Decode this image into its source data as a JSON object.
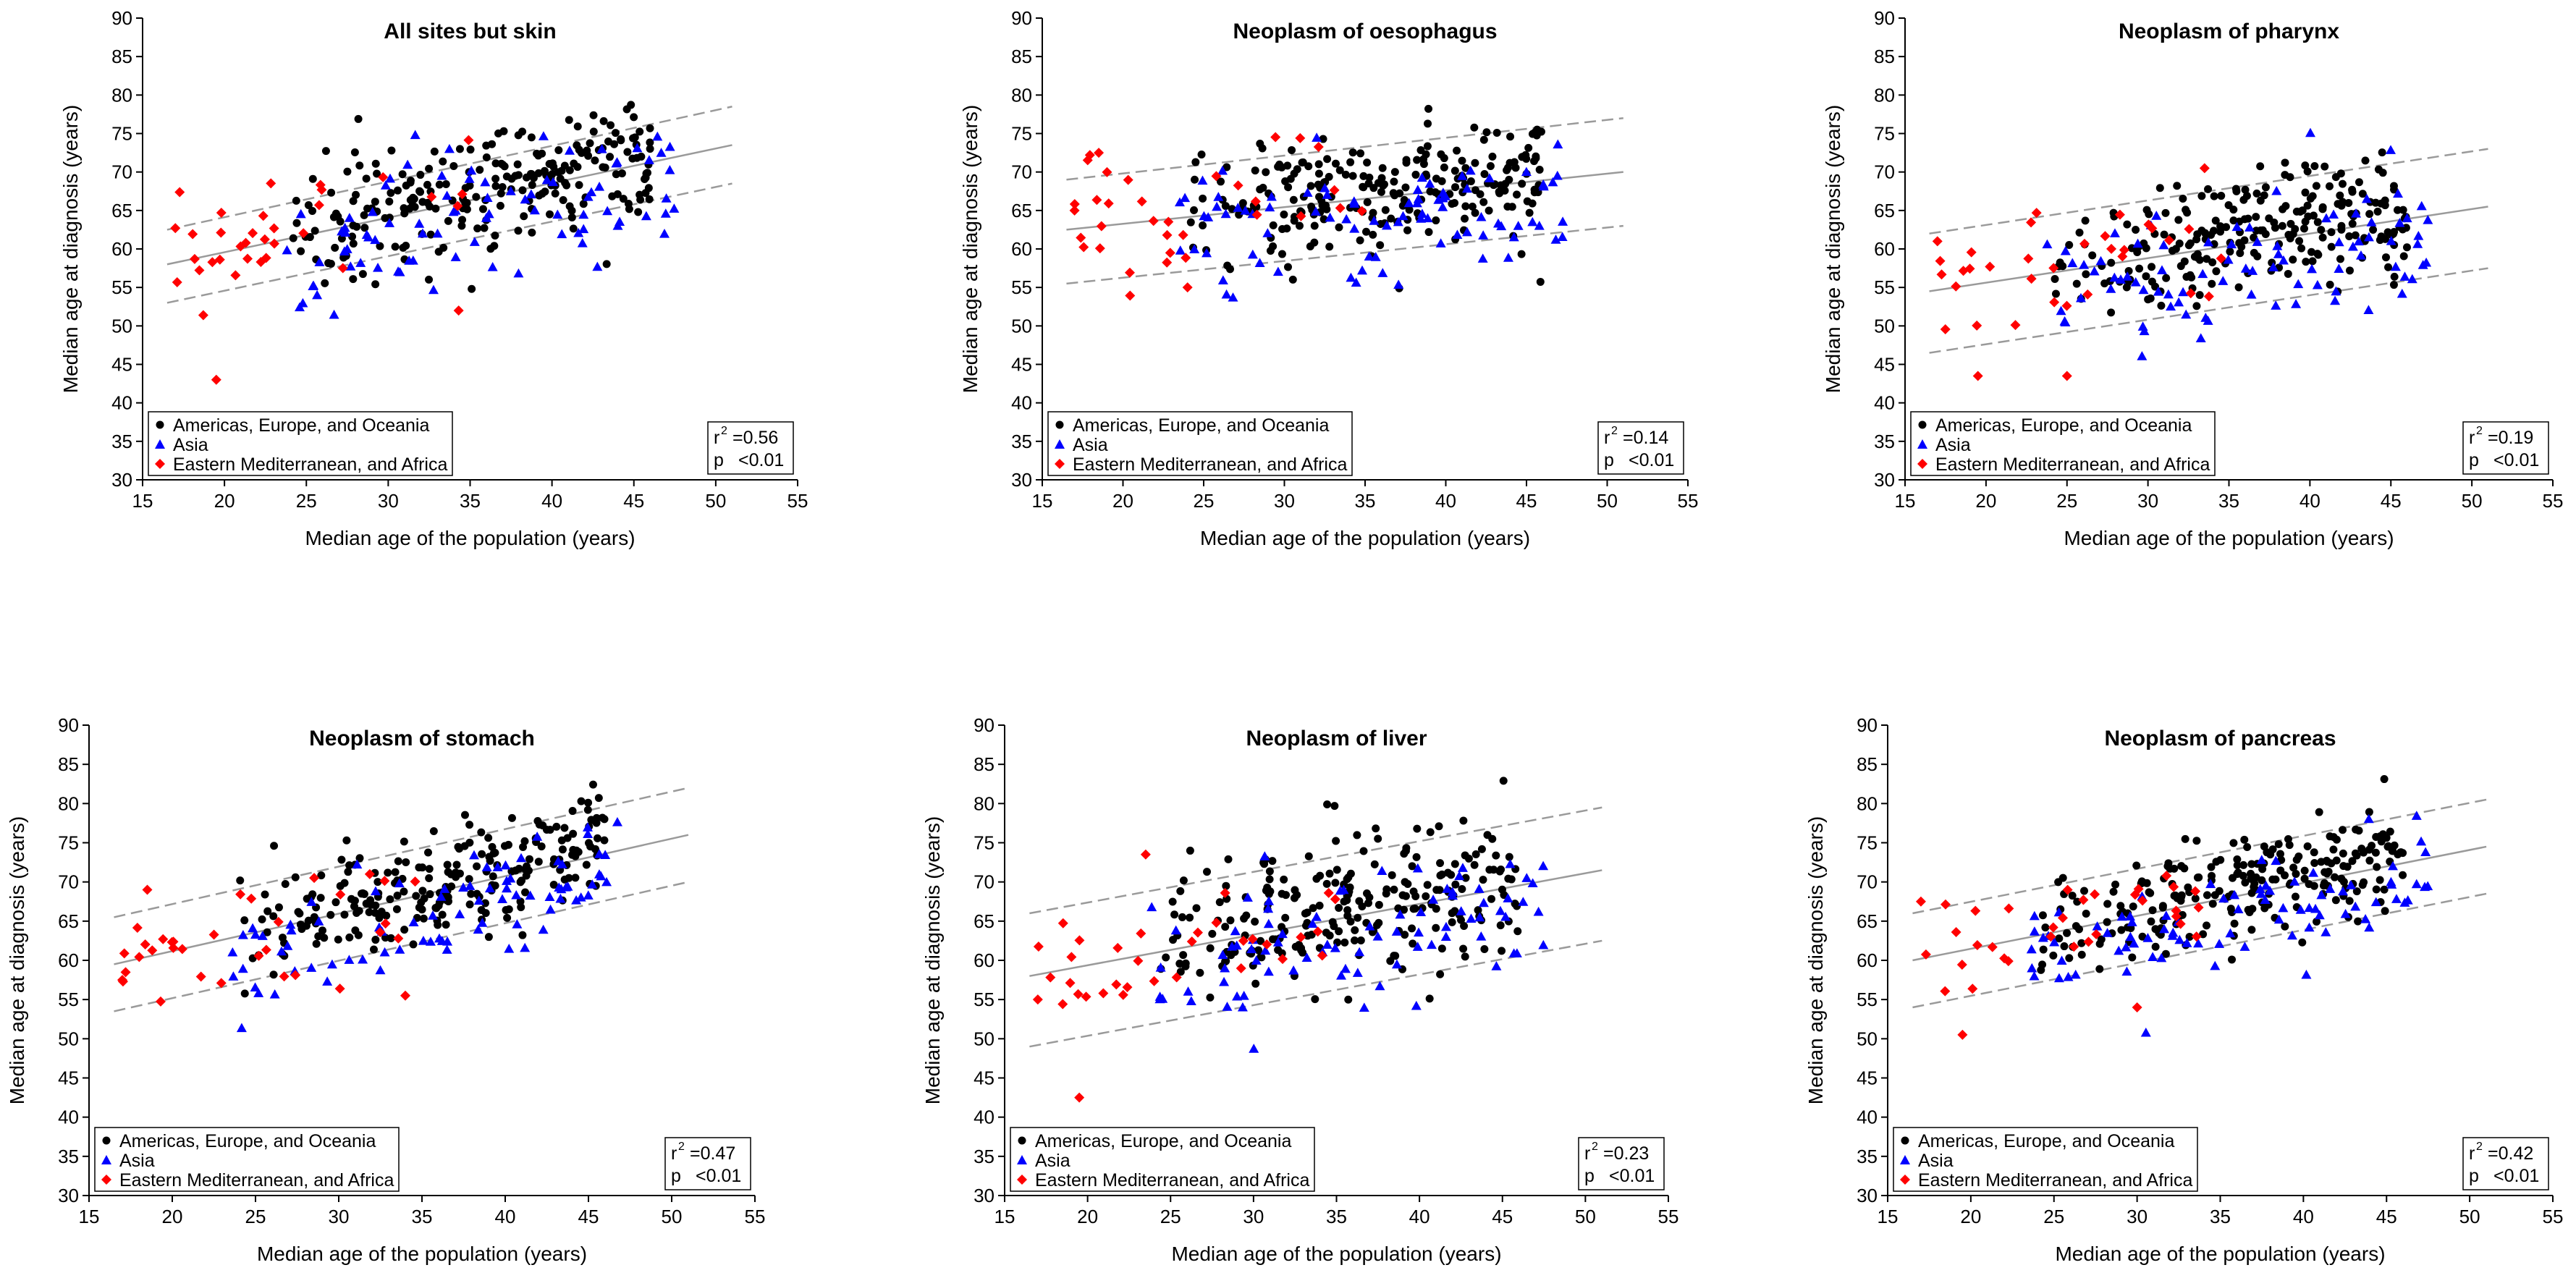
{
  "colors": {
    "americas": "#000000",
    "asia": "#0000ff",
    "emafrica": "#ff0000",
    "fit": "#9a9a9a",
    "ci": "#9a9a9a",
    "axis": "#000000"
  },
  "shared": {
    "xlabel": "Median age of the population (years)",
    "ylabel": "Median age at diagnosis (years)",
    "xticks": [
      "15",
      "20",
      "25",
      "30",
      "35",
      "40",
      "45",
      "50",
      "55"
    ],
    "yticks": [
      "30",
      "35",
      "40",
      "45",
      "50",
      "55",
      "60",
      "65",
      "70",
      "75",
      "80",
      "85",
      "90"
    ],
    "legend": [
      {
        "key": "americas",
        "label": "Americas, Europe, and Oceania",
        "marker": "circle"
      },
      {
        "key": "asia",
        "label": "Asia",
        "marker": "triangle"
      },
      {
        "key": "emafrica",
        "label": "Eastern Mediterranean, and Africa",
        "marker": "diamond"
      }
    ],
    "r2_label": "r",
    "r2_sup": "2",
    "p_label": "p",
    "p_value": "<0.01"
  },
  "chart_data": [
    {
      "type": "scatter",
      "title": "All sites but skin",
      "xlim": [
        15,
        55
      ],
      "ylim": [
        30,
        90
      ],
      "r2": "=0.56",
      "fit": {
        "x": [
          16.5,
          51
        ],
        "y": [
          58,
          73.5
        ]
      },
      "band": {
        "upper": [
          62.5,
          78.5
        ],
        "lower": [
          53,
          68.5
        ]
      },
      "outliers_emafrica": [
        [
          17,
          62.7
        ],
        [
          19.5,
          43
        ],
        [
          34.3,
          52
        ]
      ],
      "x_range": [
        16.5,
        51
      ],
      "y_spread": 4.2
    },
    {
      "type": "scatter",
      "title": "Neoplasm of oesophagus",
      "xlim": [
        15,
        55
      ],
      "ylim": [
        30,
        90
      ],
      "r2": "=0.14",
      "fit": {
        "x": [
          16.5,
          51
        ],
        "y": [
          62.5,
          70
        ]
      },
      "band": {
        "upper": [
          69,
          77
        ],
        "lower": [
          55.5,
          63
        ]
      },
      "outliers_emafrica": [
        [
          17,
          65
        ],
        [
          18.5,
          72.5
        ],
        [
          24,
          55
        ]
      ],
      "x_range": [
        16.5,
        51
      ],
      "y_spread": 4.5
    },
    {
      "type": "scatter",
      "title": "Neoplasm of pharynx",
      "xlim": [
        15,
        55
      ],
      "ylim": [
        30,
        90
      ],
      "r2": "=0.19",
      "fit": {
        "x": [
          16.5,
          51
        ],
        "y": [
          54.5,
          65.5
        ]
      },
      "band": {
        "upper": [
          62,
          73
        ],
        "lower": [
          46.5,
          57.5
        ]
      },
      "outliers_emafrica": [
        [
          17,
          61
        ],
        [
          19.5,
          43.5
        ],
        [
          25,
          43.5
        ]
      ],
      "x_range": [
        16.5,
        51
      ],
      "y_spread": 4.5
    },
    {
      "type": "scatter",
      "title": "Neoplasm of stomach",
      "xlim": [
        15,
        55
      ],
      "ylim": [
        30,
        90
      ],
      "r2": "=0.47",
      "fit": {
        "x": [
          16.5,
          51
        ],
        "y": [
          59.5,
          76
        ]
      },
      "band": {
        "upper": [
          65.5,
          82
        ],
        "lower": [
          53.5,
          70
        ]
      },
      "outliers_emafrica": [
        [
          17,
          57.5
        ],
        [
          18.5,
          69
        ],
        [
          34,
          55.5
        ]
      ],
      "x_range": [
        16.5,
        51
      ],
      "y_spread": 4.0
    },
    {
      "type": "scatter",
      "title": "Neoplasm of liver",
      "xlim": [
        15,
        55
      ],
      "ylim": [
        30,
        90
      ],
      "r2": "=0.23",
      "fit": {
        "x": [
          16.5,
          51
        ],
        "y": [
          58,
          71.5
        ]
      },
      "band": {
        "upper": [
          66,
          79.5
        ],
        "lower": [
          49,
          62.5
        ]
      },
      "outliers_emafrica": [
        [
          17,
          55
        ],
        [
          19.5,
          42.5
        ],
        [
          23.5,
          73.5
        ]
      ],
      "x_range": [
        16.5,
        51
      ],
      "y_spread": 4.5
    },
    {
      "type": "scatter",
      "title": "Neoplasm of pancreas",
      "xlim": [
        15,
        55
      ],
      "ylim": [
        30,
        90
      ],
      "r2": "=0.42",
      "fit": {
        "x": [
          16.5,
          51
        ],
        "y": [
          60,
          74.5
        ]
      },
      "band": {
        "upper": [
          66,
          80.5
        ],
        "lower": [
          54,
          68.5
        ]
      },
      "outliers_emafrica": [
        [
          17,
          67.5
        ],
        [
          19.5,
          50.5
        ],
        [
          30,
          54
        ]
      ],
      "x_range": [
        16.5,
        51
      ],
      "y_spread": 3.5
    }
  ]
}
